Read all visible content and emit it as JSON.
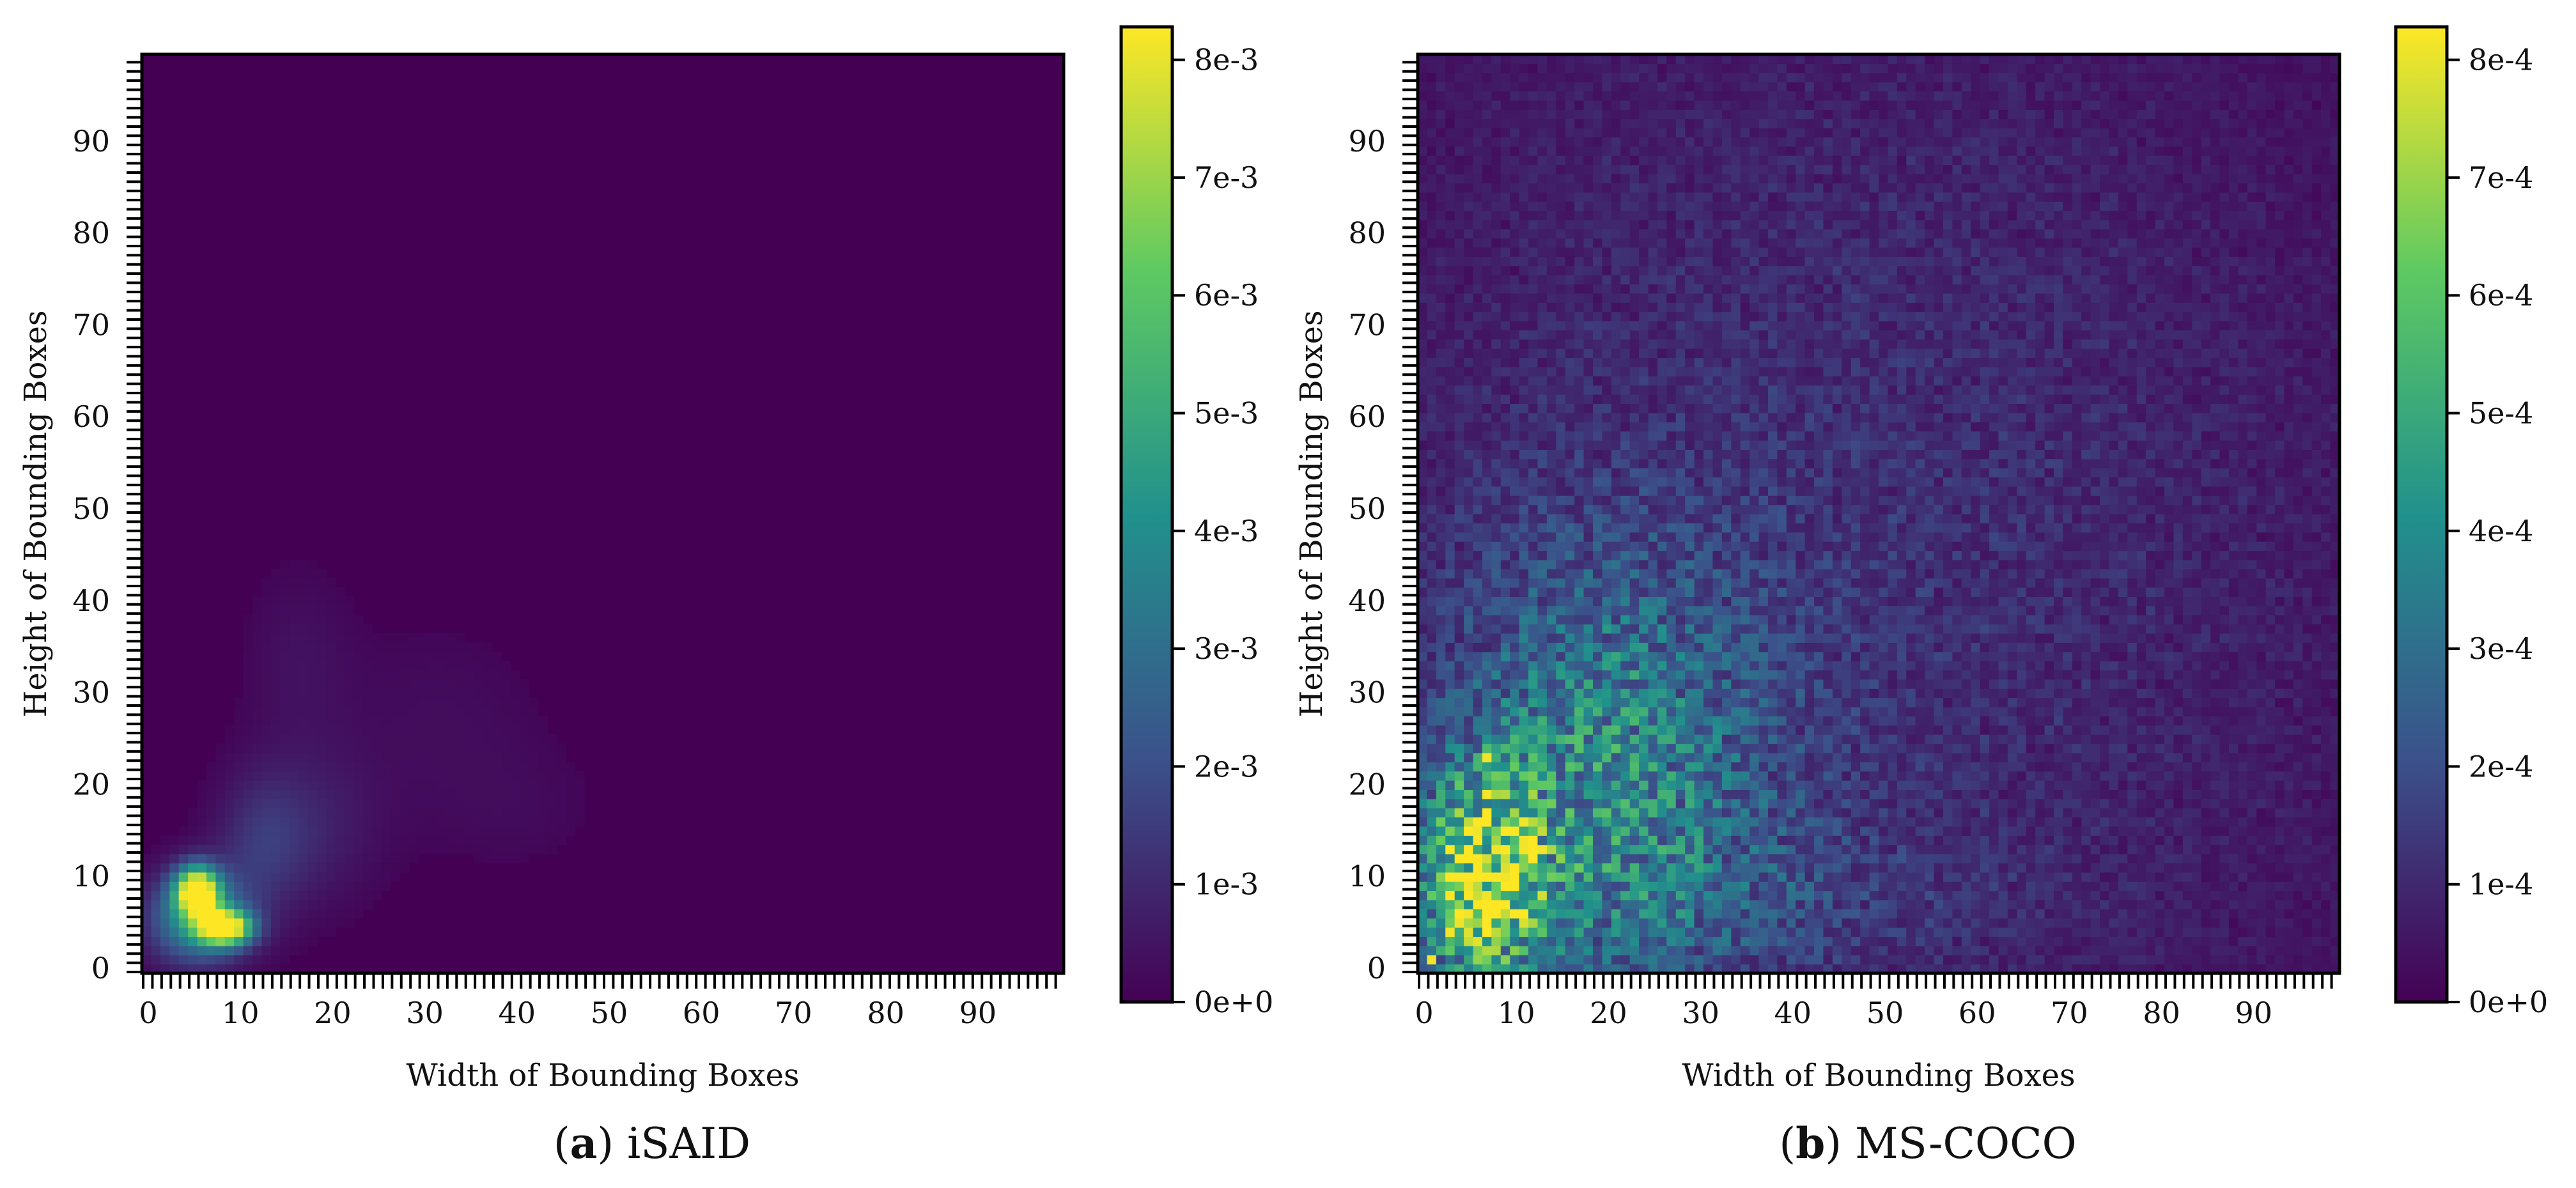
{
  "figure": {
    "colormap_stops": [
      "#440154",
      "#3b528b",
      "#21918c",
      "#5ec962",
      "#fde725"
    ]
  },
  "chart_data": [
    {
      "type": "heatmap",
      "panel_letter": "a",
      "caption": "iSAID",
      "xlabel": "Width of Bounding Boxes",
      "ylabel": "Height of Bounding Boxes",
      "xlim": [
        0,
        100
      ],
      "ylim": [
        0,
        100
      ],
      "xticks": [
        "0",
        "10",
        "20",
        "30",
        "40",
        "50",
        "60",
        "70",
        "80",
        "90"
      ],
      "yticks": [
        "0",
        "10",
        "20",
        "30",
        "40",
        "50",
        "60",
        "70",
        "80",
        "90"
      ],
      "colorbar_ticks": [
        "0e+0",
        "1e-3",
        "2e-3",
        "3e-3",
        "4e-3",
        "5e-3",
        "6e-3",
        "7e-3",
        "8e-3"
      ],
      "colorbar_max": 0.0082,
      "grid_size": 100,
      "noise": 0.0,
      "hotspots": [
        {
          "cx": 6,
          "cy": 9,
          "sx": 1.6,
          "sy": 1.8,
          "amp": 0.0082
        },
        {
          "cx": 9,
          "cy": 5,
          "sx": 2.0,
          "sy": 1.3,
          "amp": 0.008
        },
        {
          "cx": 6,
          "cy": 6,
          "sx": 3.6,
          "sy": 3.4,
          "amp": 0.0042
        },
        {
          "cx": 13,
          "cy": 14,
          "sx": 3.5,
          "sy": 5.5,
          "amp": 0.0012
        },
        {
          "cx": 19,
          "cy": 16,
          "sx": 5,
          "sy": 6,
          "amp": 0.0007
        },
        {
          "cx": 17,
          "cy": 34,
          "sx": 4,
          "sy": 7,
          "amp": 0.0004
        },
        {
          "cx": 32,
          "cy": 28,
          "sx": 8,
          "sy": 7,
          "amp": 0.00028
        },
        {
          "cx": 40,
          "cy": 18,
          "sx": 7,
          "sy": 5,
          "amp": 0.00022
        },
        {
          "cx": 38,
          "cy": 58,
          "sx": 5,
          "sy": 5,
          "amp": 0.0001
        }
      ]
    },
    {
      "type": "heatmap",
      "panel_letter": "b",
      "caption": "MS-COCO",
      "xlabel": "Width of Bounding Boxes",
      "ylabel": "Height of Bounding Boxes",
      "xlim": [
        0,
        100
      ],
      "ylim": [
        0,
        100
      ],
      "xticks": [
        "0",
        "10",
        "20",
        "30",
        "40",
        "50",
        "60",
        "70",
        "80",
        "90"
      ],
      "yticks": [
        "0",
        "10",
        "20",
        "30",
        "40",
        "50",
        "60",
        "70",
        "80",
        "90"
      ],
      "colorbar_ticks": [
        "0e+0",
        "1e-4",
        "2e-4",
        "3e-4",
        "4e-4",
        "5e-4",
        "6e-4",
        "7e-4",
        "8e-4"
      ],
      "colorbar_max": 0.00084,
      "grid_size": 100,
      "noise": 0.55,
      "hotspots": [
        {
          "cx": 7,
          "cy": 10,
          "sx": 4.5,
          "sy": 8,
          "amp": 0.00058
        },
        {
          "cx": 20,
          "cy": 22,
          "sx": 12,
          "sy": 16,
          "amp": 0.0003
        },
        {
          "cx": 45,
          "cy": 45,
          "sx": 45,
          "sy": 50,
          "amp": 0.00011
        },
        {
          "cx": 30,
          "cy": 8,
          "sx": 20,
          "sy": 6,
          "amp": 8e-05
        }
      ],
      "bright_cells": [
        [
          1,
          1
        ],
        [
          3,
          4
        ],
        [
          5,
          6
        ],
        [
          7,
          8
        ],
        [
          7,
          23
        ],
        [
          8,
          13
        ],
        [
          13,
          13
        ],
        [
          5,
          9
        ],
        [
          9,
          10
        ],
        [
          11,
          14
        ],
        [
          6,
          15
        ]
      ]
    }
  ]
}
